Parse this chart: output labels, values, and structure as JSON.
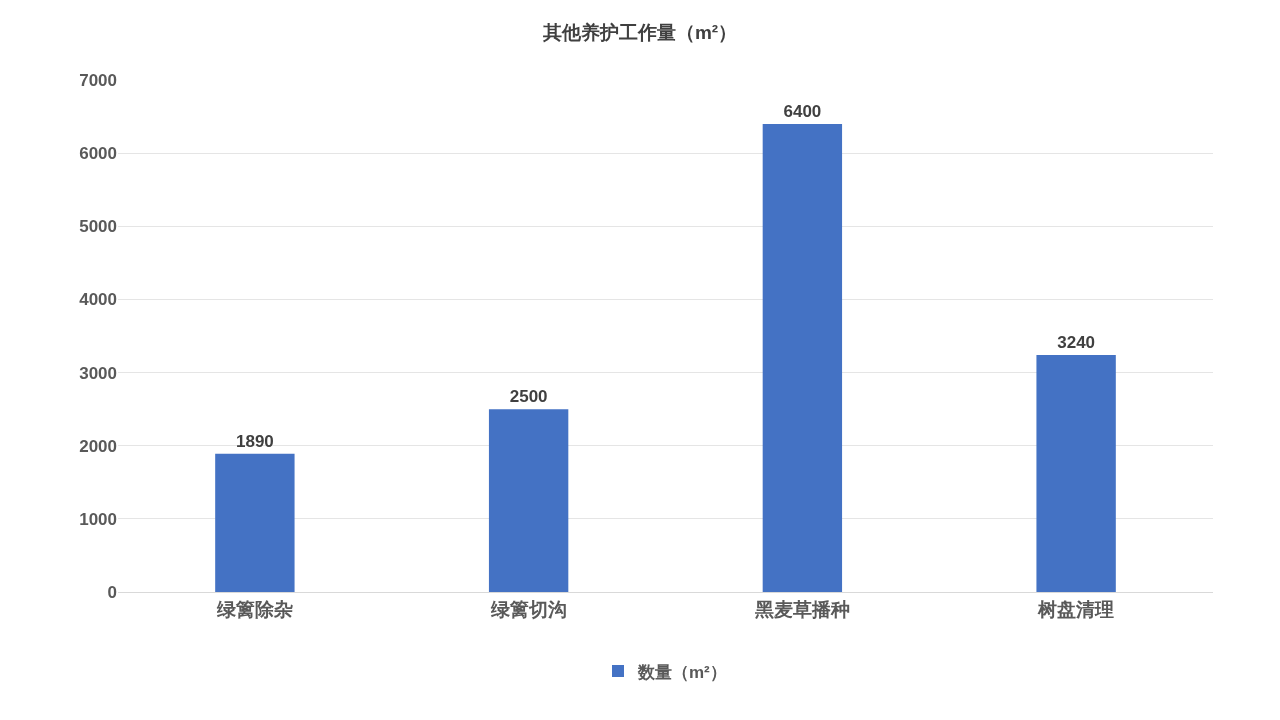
{
  "chart_data": {
    "type": "bar",
    "title": "其他养护工作量（m²）",
    "categories": [
      "绿篱除杂",
      "绿篱切沟",
      "黑麦草播种",
      "树盘清理"
    ],
    "series": [
      {
        "name": "数量（m²）",
        "color": "#4472c4",
        "values": [
          1890,
          2500,
          6400,
          3240
        ]
      }
    ],
    "ylim": [
      0,
      7000
    ],
    "yticks": [
      0,
      1000,
      2000,
      3000,
      4000,
      5000,
      6000,
      7000
    ],
    "grid": "y",
    "legend": "bottom",
    "data_labels": true
  }
}
